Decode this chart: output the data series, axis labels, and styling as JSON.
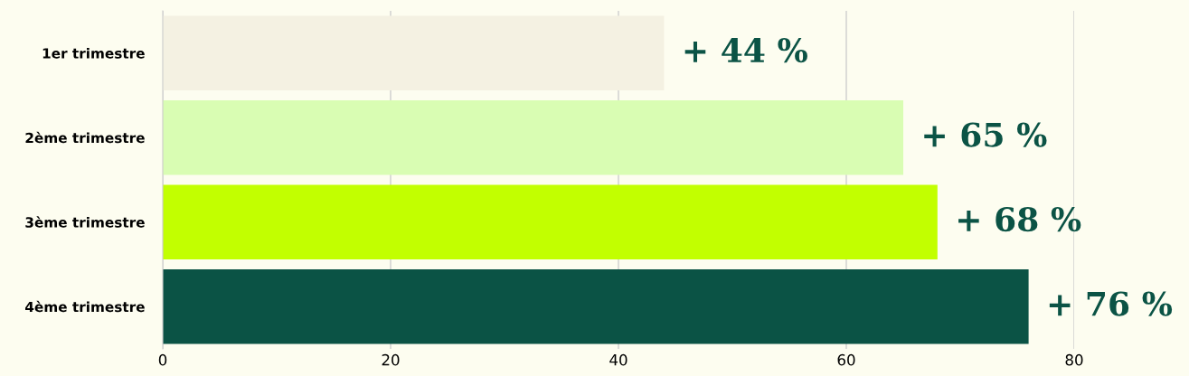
{
  "chart_data": {
    "type": "bar",
    "orientation": "horizontal",
    "categories": [
      "1er trimestre",
      "2ème trimestre",
      "3ème trimestre",
      "4ème trimestre"
    ],
    "values": [
      44,
      65,
      68,
      76
    ],
    "colors": [
      "#f4f1e2",
      "#d9fdb3",
      "#c2ff00",
      "#0b5345"
    ],
    "value_labels": [
      "+ 44 %",
      "+ 65 %",
      "+ 68 %",
      "+ 76 %"
    ],
    "xlim": [
      0,
      80
    ],
    "xticks": [
      0,
      20,
      40,
      60,
      80
    ],
    "grid": "x"
  }
}
